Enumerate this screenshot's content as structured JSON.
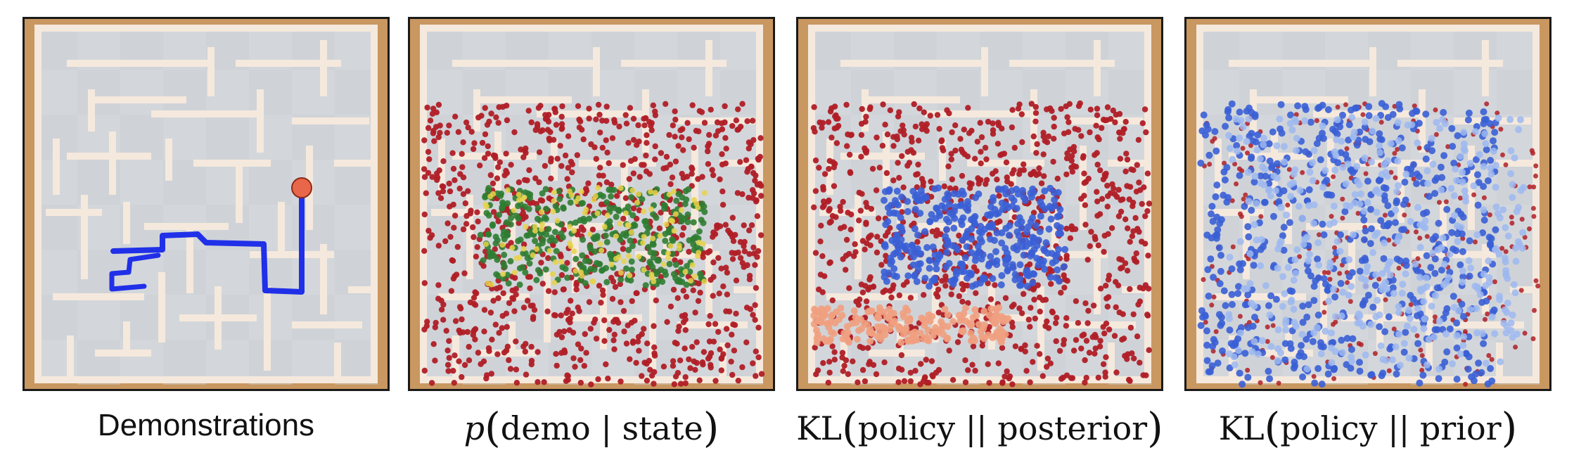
{
  "panels": [
    {
      "id": "demonstrations",
      "caption": "Demonstrations"
    },
    {
      "id": "p-demo-state",
      "caption_func": "p",
      "caption_arg": "demo | state"
    },
    {
      "id": "kl-policy-posterior",
      "caption_func": "KL",
      "caption_arg": "policy || posterior"
    },
    {
      "id": "kl-policy-prior",
      "caption_func": "KL",
      "caption_arg": "policy || prior"
    }
  ],
  "colors": {
    "frame": "#c99760",
    "floor": "#d3d7db",
    "wall": "#f5e9dd",
    "trajectory": "#2030e8",
    "goal": "#e8664a",
    "red_dots": "#b01e26",
    "green_dots": "#2f7d32",
    "blue_dots": "#3a5fd6",
    "light_blue_dots": "#9db8f0",
    "salmon_dots": "#f0a080"
  }
}
